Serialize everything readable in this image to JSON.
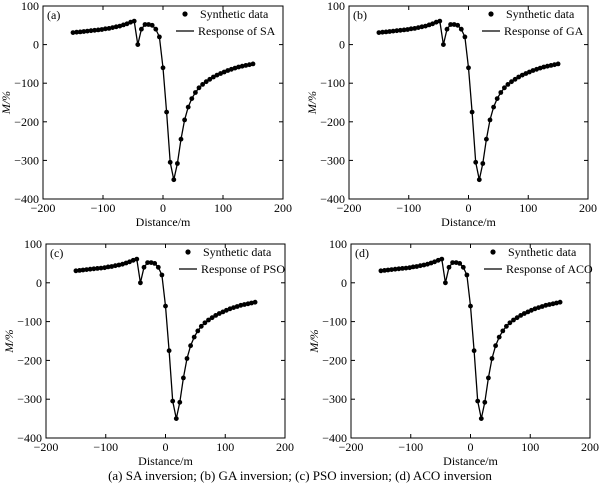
{
  "caption": "(a) SA inversion; (b) GA inversion; (c) PSO inversion; (d) ACO inversion",
  "chart_data": [
    {
      "type": "scatter",
      "panel_label": "(a)",
      "xlabel": "Distance/m",
      "ylabel": "M/%",
      "xlim": [
        -200,
        200
      ],
      "ylim": [
        -400,
        100
      ],
      "xticks": [
        -200,
        -100,
        0,
        100,
        200
      ],
      "yticks": [
        -400,
        -300,
        -200,
        -100,
        0,
        100
      ],
      "legend_position": "top-right",
      "series": [
        {
          "name": "Synthetic data",
          "kind": "points"
        },
        {
          "name": "Response of SA",
          "kind": "line"
        }
      ]
    },
    {
      "type": "scatter",
      "panel_label": "(b)",
      "xlabel": "Distance/m",
      "ylabel": "M/%",
      "xlim": [
        -200,
        200
      ],
      "ylim": [
        -400,
        100
      ],
      "xticks": [
        -200,
        -100,
        0,
        100,
        200
      ],
      "yticks": [
        -400,
        -300,
        -200,
        -100,
        0,
        100
      ],
      "legend_position": "top-right",
      "series": [
        {
          "name": "Synthetic data",
          "kind": "points"
        },
        {
          "name": "Response of GA",
          "kind": "line"
        }
      ]
    },
    {
      "type": "scatter",
      "panel_label": "(c)",
      "xlabel": "Distance/m",
      "ylabel": "M/%",
      "xlim": [
        -200,
        200
      ],
      "ylim": [
        -400,
        100
      ],
      "xticks": [
        -200,
        -100,
        0,
        100,
        200
      ],
      "yticks": [
        -400,
        -300,
        -200,
        -100,
        0,
        100
      ],
      "legend_position": "top-right",
      "series": [
        {
          "name": "Synthetic data",
          "kind": "points"
        },
        {
          "name": "Response of PSO",
          "kind": "line"
        }
      ]
    },
    {
      "type": "scatter",
      "panel_label": "(d)",
      "xlabel": "Distance/m",
      "ylabel": "M/%",
      "xlim": [
        -200,
        200
      ],
      "ylim": [
        -400,
        100
      ],
      "xticks": [
        -200,
        -100,
        0,
        100,
        200
      ],
      "yticks": [
        -400,
        -300,
        -200,
        -100,
        0,
        100
      ],
      "legend_position": "top-right",
      "series": [
        {
          "name": "Synthetic data",
          "kind": "points"
        },
        {
          "name": "Response of ACO",
          "kind": "line"
        }
      ]
    }
  ],
  "profile": {
    "x": [
      -150,
      -144,
      -138,
      -132,
      -126,
      -120,
      -114,
      -108,
      -102,
      -96,
      -90,
      -84,
      -78,
      -72,
      -66,
      -60,
      -54,
      -48,
      -42,
      -36,
      -30,
      -24,
      -18,
      -12,
      -6,
      0,
      6,
      12,
      18,
      24,
      30,
      36,
      42,
      48,
      54,
      60,
      66,
      72,
      78,
      84,
      90,
      96,
      102,
      108,
      114,
      120,
      126,
      132,
      138,
      144,
      150
    ],
    "y": [
      31,
      32,
      33,
      34,
      35,
      36,
      37,
      38,
      39,
      41,
      42,
      44,
      46,
      48,
      51,
      54,
      58,
      61,
      0,
      40,
      52,
      52,
      50,
      40,
      20,
      -60,
      -175,
      -305,
      -350,
      -308,
      -245,
      -195,
      -162,
      -140,
      -124,
      -112,
      -103,
      -96,
      -90,
      -84,
      -79,
      -75,
      -71,
      -67,
      -64,
      -61,
      -58,
      -56,
      -54,
      -52,
      -50
    ]
  }
}
